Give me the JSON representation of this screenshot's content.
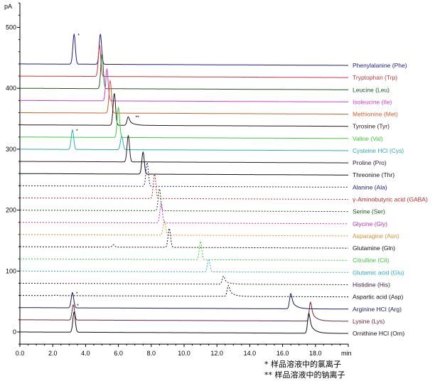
{
  "chart_data": {
    "type": "line",
    "title": "",
    "xlabel": "min",
    "ylabel": "pA",
    "xlim": [
      0,
      20
    ],
    "ylim": [
      -20,
      540
    ],
    "x_ticks": [
      "0.0",
      "2.0",
      "4.0",
      "6.0",
      "8.0",
      "10.0",
      "12.0",
      "14.0",
      "16.0",
      "18.0"
    ],
    "y_ticks": [
      "0",
      "100",
      "200",
      "300",
      "400",
      "500"
    ],
    "grid": false,
    "legend": "right, labels at end of each trace",
    "series": [
      {
        "name": "Phenylalanine (Phe)",
        "color": "#1c1c8a",
        "dashed": false,
        "baseline": 440,
        "peaks": [
          {
            "rt": 3.3,
            "h": 49,
            "mark": "*"
          },
          {
            "rt": 4.9,
            "h": 49
          }
        ]
      },
      {
        "name": "Tryptophan (Trp)",
        "color": "#c83a3a",
        "dashed": false,
        "baseline": 420,
        "peaks": [
          {
            "rt": 4.85,
            "h": 51
          }
        ]
      },
      {
        "name": "Leucine (Leu)",
        "color": "#1e5a1e",
        "dashed": false,
        "baseline": 400,
        "peaks": [
          {
            "rt": 5.0,
            "h": 57
          }
        ]
      },
      {
        "name": "Isoleucine (Ile)",
        "color": "#d040d0",
        "dashed": false,
        "baseline": 380,
        "peaks": [
          {
            "rt": 5.3,
            "h": 52
          }
        ]
      },
      {
        "name": "Methionine (Met)",
        "color": "#d0602a",
        "dashed": false,
        "baseline": 360,
        "peaks": [
          {
            "rt": 5.5,
            "h": 53
          }
        ]
      },
      {
        "name": "Tyrosine (Tyr)",
        "color": "#2a1a1a",
        "dashed": false,
        "baseline": 340,
        "peaks": [
          {
            "rt": 5.75,
            "h": 52
          },
          {
            "rt": 6.6,
            "h": 14,
            "tail": true,
            "mark": "**"
          }
        ]
      },
      {
        "name": "Valine (Val)",
        "color": "#3ccc3c",
        "dashed": false,
        "baseline": 320,
        "peaks": [
          {
            "rt": 6.0,
            "h": 49
          }
        ]
      },
      {
        "name": "Cysteine HCl (Cys)",
        "color": "#2aaeb4",
        "dashed": false,
        "baseline": 300,
        "peaks": [
          {
            "rt": 3.2,
            "h": 32,
            "mark": "*"
          },
          {
            "rt": 6.2,
            "h": 22
          }
        ]
      },
      {
        "name": "Proline (Pro)",
        "color": "#2a1a2a",
        "dashed": false,
        "baseline": 280,
        "peaks": [
          {
            "rt": 6.6,
            "h": 43
          }
        ]
      },
      {
        "name": "Threonine (Thr)",
        "color": "#111111",
        "dashed": false,
        "baseline": 260,
        "peaks": [
          {
            "rt": 7.5,
            "h": 36
          }
        ]
      },
      {
        "name": "Alanine (Ala)",
        "color": "#202080",
        "dashed": true,
        "baseline": 240,
        "peaks": [
          {
            "rt": 7.75,
            "h": 39
          }
        ]
      },
      {
        "name": "γ-Aminobutyric acid (GABA)",
        "color": "#c02a2a",
        "dashed": true,
        "baseline": 220,
        "peaks": [
          {
            "rt": 8.2,
            "h": 40
          }
        ]
      },
      {
        "name": "Serine (Ser)",
        "color": "#1e4e1e",
        "dashed": true,
        "baseline": 200,
        "peaks": [
          {
            "rt": 8.5,
            "h": 36
          }
        ]
      },
      {
        "name": "Glycine (Gly)",
        "color": "#c030c0",
        "dashed": true,
        "baseline": 180,
        "peaks": [
          {
            "rt": 8.6,
            "h": 32
          }
        ]
      },
      {
        "name": "Asparagine (Asn)",
        "color": "#e09030",
        "dashed": true,
        "baseline": 160,
        "peaks": [
          {
            "rt": 8.8,
            "h": 24
          }
        ]
      },
      {
        "name": "Glutamine (Gln)",
        "color": "#111111",
        "dashed": true,
        "baseline": 140,
        "peaks": [
          {
            "rt": 5.7,
            "h": 4
          },
          {
            "rt": 9.1,
            "h": 31
          }
        ]
      },
      {
        "name": "Citrulline (Cit)",
        "color": "#3ccc3c",
        "dashed": true,
        "baseline": 120,
        "peaks": [
          {
            "rt": 11.0,
            "h": 30
          }
        ]
      },
      {
        "name": "Glutamic acid (Glu)",
        "color": "#2aaec0",
        "dashed": true,
        "baseline": 100,
        "peaks": [
          {
            "rt": 11.5,
            "h": 21
          }
        ]
      },
      {
        "name": "Histidine (His)",
        "color": "#3a1e3a",
        "dashed": true,
        "baseline": 80,
        "peaks": [
          {
            "rt": 12.4,
            "h": 13,
            "tail": true
          }
        ]
      },
      {
        "name": "Aspartic acid (Asp)",
        "color": "#111111",
        "dashed": true,
        "baseline": 60,
        "peaks": [
          {
            "rt": 2.2,
            "h": 1
          },
          {
            "rt": 12.7,
            "h": 18,
            "tail": true
          }
        ]
      },
      {
        "name": "Arginine HCl (Arg)",
        "color": "#1c1c5a",
        "dashed": false,
        "baseline": 40,
        "peaks": [
          {
            "rt": 3.2,
            "h": 25,
            "mark": "*"
          },
          {
            "rt": 16.5,
            "h": 25,
            "tail": true
          }
        ]
      },
      {
        "name": "Lysine (Lys)",
        "color": "#6a2a3a",
        "dashed": false,
        "baseline": 20,
        "peaks": [
          {
            "rt": 3.25,
            "h": 25,
            "mark": "*"
          },
          {
            "rt": 17.7,
            "h": 31,
            "tail": true
          }
        ]
      },
      {
        "name": "Ornithine HCl (Orn)",
        "color": "#111111",
        "dashed": false,
        "baseline": 0,
        "peaks": [
          {
            "rt": 3.3,
            "h": 33
          },
          {
            "rt": 17.6,
            "h": 33,
            "tail": true
          }
        ]
      }
    ],
    "footnotes": [
      "* 样品溶液中的氯离子",
      "** 样品溶液中的钠离子"
    ]
  }
}
